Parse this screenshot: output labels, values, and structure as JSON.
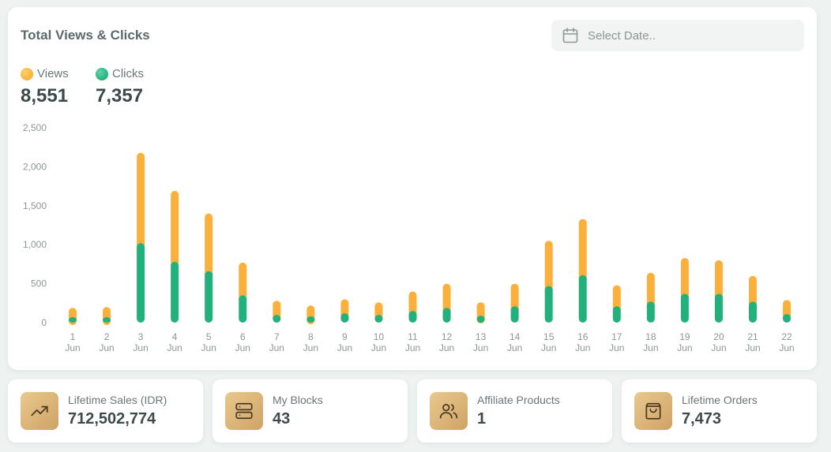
{
  "header": {
    "title": "Total Views & Clicks",
    "date_placeholder": "Select Date.."
  },
  "legend": {
    "views": {
      "label": "Views",
      "total": "8,551",
      "color": "#fbb03b"
    },
    "clicks": {
      "label": "Clicks",
      "total": "7,357",
      "color": "#22b07d"
    }
  },
  "chart_data": {
    "type": "bar",
    "stacked": true,
    "categories": [
      "1 Jun",
      "2 Jun",
      "3 Jun",
      "4 Jun",
      "5 Jun",
      "6 Jun",
      "7 Jun",
      "8 Jun",
      "9 Jun",
      "10 Jun",
      "11 Jun",
      "12 Jun",
      "13 Jun",
      "14 Jun",
      "15 Jun",
      "16 Jun",
      "17 Jun",
      "18 Jun",
      "19 Jun",
      "20 Jun",
      "21 Jun",
      "22 Jun"
    ],
    "x_tick_lines": [
      [
        "1",
        "Jun"
      ],
      [
        "2",
        "Jun"
      ],
      [
        "3",
        "Jun"
      ],
      [
        "4",
        "Jun"
      ],
      [
        "5",
        "Jun"
      ],
      [
        "6",
        "Jun"
      ],
      [
        "7",
        "Jun"
      ],
      [
        "8",
        "Jun"
      ],
      [
        "9",
        "Jun"
      ],
      [
        "10",
        "Jun"
      ],
      [
        "11",
        "Jun"
      ],
      [
        "12",
        "Jun"
      ],
      [
        "13",
        "Jun"
      ],
      [
        "14",
        "Jun"
      ],
      [
        "15",
        "Jun"
      ],
      [
        "16",
        "Jun"
      ],
      [
        "17",
        "Jun"
      ],
      [
        "18",
        "Jun"
      ],
      [
        "19",
        "Jun"
      ],
      [
        "20",
        "Jun"
      ],
      [
        "21",
        "Jun"
      ],
      [
        "22",
        "Jun"
      ]
    ],
    "series": [
      {
        "name": "Clicks",
        "color": "#22b07d",
        "values": [
          70,
          70,
          1020,
          780,
          660,
          350,
          100,
          80,
          120,
          100,
          150,
          190,
          90,
          210,
          470,
          610,
          210,
          270,
          370,
          370,
          270,
          110
        ]
      },
      {
        "name": "Views",
        "color": "#fbb03b",
        "values": [
          120,
          130,
          1160,
          910,
          740,
          420,
          180,
          140,
          180,
          160,
          250,
          310,
          170,
          290,
          580,
          720,
          270,
          370,
          460,
          430,
          330,
          180
        ]
      }
    ],
    "ylim": [
      0,
      2500
    ],
    "yticks": [
      0,
      500,
      1000,
      1500,
      2000,
      2500
    ],
    "ytick_labels": [
      "0",
      "500",
      "1,000",
      "1,500",
      "2,000",
      "2,500"
    ],
    "grid": false
  },
  "stats": [
    {
      "label": "Lifetime Sales (IDR)",
      "value": "712,502,774",
      "icon": "trending-up-icon"
    },
    {
      "label": "My Blocks",
      "value": "43",
      "icon": "server-icon"
    },
    {
      "label": "Affiliate Products",
      "value": "1",
      "icon": "users-icon"
    },
    {
      "label": "Lifetime Orders",
      "value": "7,473",
      "icon": "shopping-bag-icon"
    }
  ]
}
